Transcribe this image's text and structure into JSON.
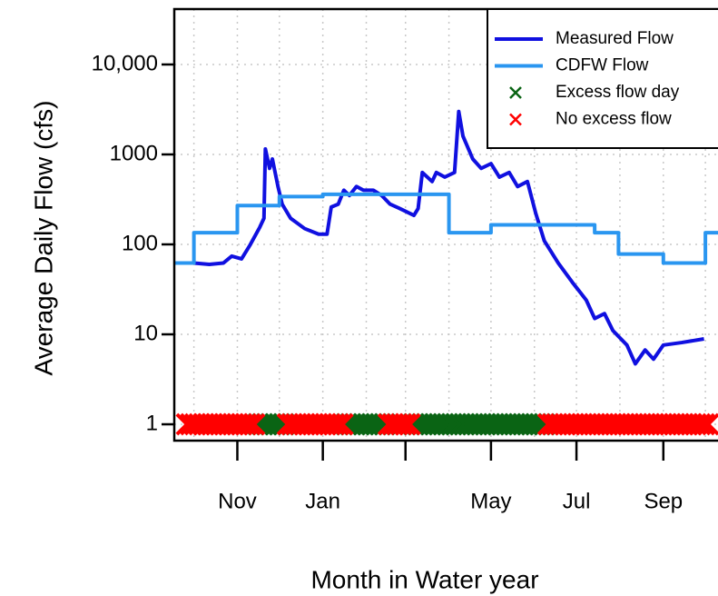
{
  "chart_data": {
    "type": "line",
    "xlabel": "Month in Water year",
    "ylabel": "Average Daily Flow (cfs)",
    "log_y": true,
    "grid": true,
    "legend": "upper right",
    "xlim": [
      -14,
      374
    ],
    "ylim": [
      0.658,
      41300
    ],
    "xticks": [
      {
        "value": 31,
        "label": "Nov"
      },
      {
        "value": 92,
        "label": "Jan"
      },
      {
        "value": 151,
        "label": null
      },
      {
        "value": 212,
        "label": "May"
      },
      {
        "value": 273,
        "label": "Jul"
      },
      {
        "value": 335,
        "label": "Sep"
      }
    ],
    "xgrid": [
      0,
      31,
      61,
      92,
      123,
      151,
      182,
      212,
      243,
      273,
      304,
      335,
      365
    ],
    "yticks": [
      1,
      10,
      100,
      1000,
      {
        "value": 10000,
        "label": "10,000"
      }
    ],
    "series": [
      {
        "name": "Measured Flow",
        "color": "#1010e0",
        "kind": "line",
        "x": [
          0,
          11,
          21,
          27,
          34,
          40,
          47,
          50,
          51,
          54,
          56,
          60,
          63,
          69,
          79,
          89,
          95,
          98,
          103,
          107,
          111,
          116,
          121,
          128,
          134,
          140,
          147,
          157,
          160,
          163,
          170,
          173,
          179,
          186,
          189,
          192,
          199,
          205,
          212,
          218,
          225,
          231,
          238,
          244,
          250,
          260,
          270,
          280,
          286,
          293,
          299,
          309,
          315,
          322,
          328,
          335,
          348,
          364
        ],
        "values": [
          62,
          60,
          62,
          74,
          69,
          98,
          155,
          195,
          1150,
          700,
          890,
          440,
          280,
          195,
          150,
          130,
          130,
          260,
          280,
          400,
          350,
          440,
          400,
          400,
          350,
          280,
          250,
          210,
          250,
          630,
          500,
          630,
          560,
          630,
          3000,
          1600,
          890,
          700,
          790,
          560,
          630,
          440,
          500,
          220,
          110,
          62,
          38,
          24,
          15,
          17,
          11,
          7.6,
          4.7,
          6.7,
          5.3,
          7.6,
          8.1,
          8.9
        ]
      },
      {
        "name": "CDFW Flow",
        "color": "#2a96f0",
        "kind": "step",
        "x": [
          -14,
          0,
          31,
          61,
          92,
          182,
          212,
          286,
          303,
          335,
          365,
          374
        ],
        "values": [
          62,
          135,
          270,
          340,
          360,
          135,
          165,
          135,
          78,
          62,
          135,
          135
        ]
      },
      {
        "name": "Excess flow day",
        "color": "#0a6414",
        "kind": "marker",
        "x": [
          46,
          49,
          52,
          55,
          58,
          61,
          64,
          109,
          112,
          115,
          118,
          121,
          124,
          127,
          130,
          133,
          136,
          157,
          160,
          163,
          166,
          169,
          172,
          175,
          178,
          181,
          184,
          187,
          190,
          193,
          196,
          199,
          202,
          205,
          208,
          211,
          214,
          217,
          220,
          223,
          226,
          229,
          232,
          235,
          238,
          241,
          244,
          247,
          250
        ],
        "values": [
          1,
          1,
          1,
          1,
          1,
          1,
          1,
          1,
          1,
          1,
          1,
          1,
          1,
          1,
          1,
          1,
          1,
          1,
          1,
          1,
          1,
          1,
          1,
          1,
          1,
          1,
          1,
          1,
          1,
          1,
          1,
          1,
          1,
          1,
          1,
          1,
          1,
          1,
          1,
          1,
          1,
          1,
          1,
          1,
          1,
          1,
          1,
          1,
          1
        ]
      },
      {
        "name": "No excess flow",
        "color": "#ff0000",
        "kind": "marker",
        "x": [
          -5,
          -2,
          1,
          4,
          7,
          10,
          13,
          16,
          19,
          22,
          25,
          28,
          31,
          34,
          37,
          40,
          43,
          67,
          70,
          73,
          76,
          79,
          82,
          85,
          88,
          91,
          94,
          97,
          100,
          103,
          106,
          139,
          142,
          145,
          148,
          151,
          154,
          253,
          256,
          259,
          262,
          265,
          268,
          271,
          274,
          277,
          280,
          283,
          286,
          289,
          292,
          295,
          298,
          301,
          304,
          307,
          310,
          313,
          316,
          319,
          322,
          325,
          328,
          331,
          334,
          337,
          340,
          343,
          346,
          349,
          352,
          355,
          358,
          361,
          364,
          367
        ],
        "values": [
          1,
          1,
          1,
          1,
          1,
          1,
          1,
          1,
          1,
          1,
          1,
          1,
          1,
          1,
          1,
          1,
          1,
          1,
          1,
          1,
          1,
          1,
          1,
          1,
          1,
          1,
          1,
          1,
          1,
          1,
          1,
          1,
          1,
          1,
          1,
          1,
          1,
          1,
          1,
          1,
          1,
          1,
          1,
          1,
          1,
          1,
          1,
          1,
          1,
          1,
          1,
          1,
          1,
          1,
          1,
          1,
          1,
          1,
          1,
          1,
          1,
          1,
          1,
          1,
          1,
          1,
          1,
          1,
          1,
          1,
          1,
          1,
          1,
          1,
          1,
          1
        ]
      }
    ]
  }
}
